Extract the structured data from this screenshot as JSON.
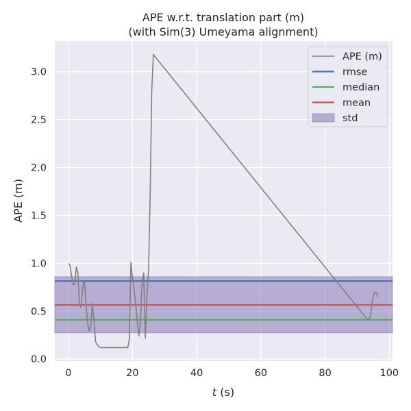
{
  "chart_data": {
    "type": "line",
    "title_line1": "APE w.r.t. translation part (m)",
    "title_line2": "(with Sim(3) Umeyama alignment)",
    "xlabel_italic": "t",
    "xlabel_rest": " (s)",
    "ylabel": "APE (m)",
    "xlim": [
      -4.2,
      101
    ],
    "ylim": [
      -0.02,
      3.32
    ],
    "xticks": [
      0,
      20,
      40,
      60,
      80,
      100
    ],
    "yticks": [
      0.0,
      0.5,
      1.0,
      1.5,
      2.0,
      2.5,
      3.0
    ],
    "ytick_labels": [
      "0.0",
      "0.5",
      "1.0",
      "1.5",
      "2.0",
      "2.5",
      "3.0"
    ],
    "grid": true,
    "legend_position": "top-right",
    "series": [
      {
        "name": "APE (m)",
        "color": "#808080",
        "x": [
          0,
          0.5,
          1.0,
          1.5,
          2.0,
          2.5,
          3.0,
          3.5,
          4.0,
          4.5,
          5.0,
          5.5,
          6.0,
          6.5,
          7.0,
          7.5,
          8.0,
          8.5,
          9.0,
          9.5,
          10.0,
          12,
          15,
          18.5,
          19.0,
          19.5,
          20.0,
          20.5,
          21.0,
          21.5,
          22.0,
          22.5,
          23.0,
          23.5,
          24.0,
          24.5,
          25.0,
          25.5,
          26.0,
          26.5,
          93.0,
          93.5,
          94.0,
          94.5,
          95.0,
          95.5,
          96.0,
          96.5
        ],
        "y": [
          1.0,
          0.98,
          0.88,
          0.78,
          0.78,
          0.96,
          0.9,
          0.56,
          0.54,
          0.76,
          0.82,
          0.58,
          0.38,
          0.29,
          0.35,
          0.58,
          0.4,
          0.18,
          0.15,
          0.13,
          0.12,
          0.12,
          0.12,
          0.12,
          0.2,
          1.01,
          0.85,
          0.72,
          0.58,
          0.38,
          0.24,
          0.42,
          0.8,
          0.9,
          0.22,
          0.66,
          0.92,
          1.7,
          2.8,
          3.18,
          0.42,
          0.42,
          0.43,
          0.55,
          0.66,
          0.7,
          0.69,
          0.65
        ]
      }
    ],
    "reference_lines": [
      {
        "name": "rmse",
        "value": 0.815,
        "color": "#4c72b0"
      },
      {
        "name": "median",
        "value": 0.41,
        "color": "#55a868"
      },
      {
        "name": "mean",
        "value": 0.565,
        "color": "#c44e52"
      }
    ],
    "std_band": {
      "name": "std",
      "lower": 0.275,
      "upper": 0.86,
      "color": "#8172b2"
    }
  }
}
